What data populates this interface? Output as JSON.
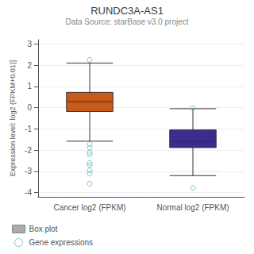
{
  "chart_data": {
    "type": "boxplot",
    "title": "RUNDC3A-AS1",
    "subtitle": "Data Source: starBase v3.0 project",
    "ylabel": "Expression level: log2 (FPKM+0.01)]",
    "categories": [
      "Cancer log2 (FPKM)",
      "Normal log2 (FPKM)"
    ],
    "series": [
      {
        "name": "Box plot",
        "type": "boxplot",
        "color": "#AAAAAA",
        "colors": [
          "#C85A1A",
          "#3D2B8E"
        ],
        "values": [
          [
            -1.58,
            -0.18,
            0.28,
            0.72,
            2.1
          ],
          [
            -3.2,
            -1.88,
            -1.6,
            -1.05,
            -0.05
          ]
        ]
      },
      {
        "name": "Gene expressions",
        "type": "scatter",
        "color": "#5CBCB8",
        "marker": "circle",
        "values": [
          [
            2.25,
            -1.72,
            -1.88,
            -2.1,
            -2.2,
            -2.6,
            -2.7,
            -2.95,
            -3.1,
            -3.58
          ],
          [
            -3.78,
            -0.02
          ]
        ]
      }
    ],
    "ylim": [
      -4.2,
      3.2
    ],
    "yticks": [
      -4,
      -3,
      -2,
      -1,
      0,
      1,
      2,
      3
    ],
    "grid": true,
    "legend": "bottom left"
  }
}
